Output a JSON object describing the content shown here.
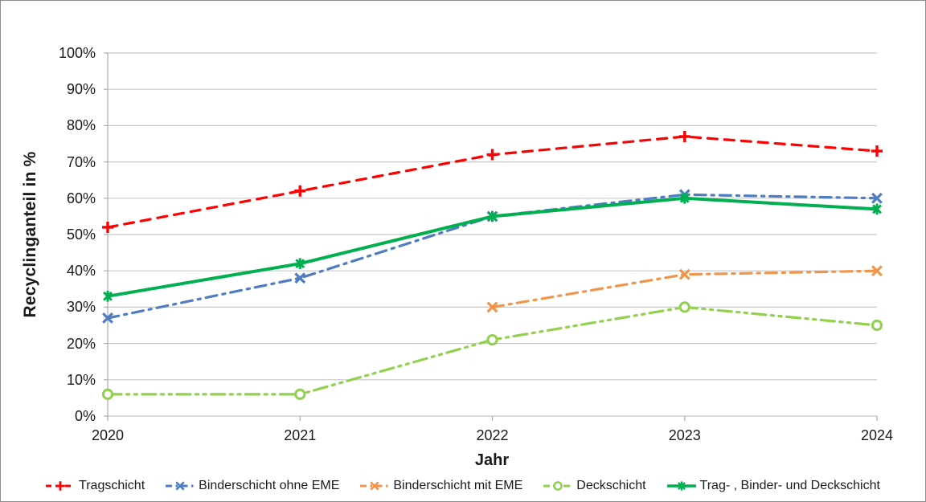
{
  "chart_data": {
    "type": "line",
    "title": "",
    "xlabel": "Jahr",
    "ylabel": "Recyclinganteil in %",
    "x_ticklabels": [
      "2020",
      "2021",
      "2022",
      "2023",
      "2024"
    ],
    "y_ticklabels": [
      "0%",
      "10%",
      "20%",
      "30%",
      "40%",
      "50%",
      "60%",
      "70%",
      "80%",
      "90%",
      "100%"
    ],
    "ylim": [
      0,
      100
    ],
    "y_step": 10,
    "grid": "horizontal",
    "legend_position": "bottom",
    "grid_color": "#c8c8c8",
    "axis_color": "#ababab",
    "text_color": "#1a1a1a",
    "series": [
      {
        "name": "Tragschicht",
        "color": "#ff0000",
        "dash": "dashed",
        "marker": "plus",
        "values": [
          52,
          62,
          72,
          77,
          73
        ]
      },
      {
        "name": "Binderschicht ohne EME",
        "color": "#4f7cc2",
        "dash": "dashdot",
        "marker": "x",
        "values": [
          27,
          38,
          55,
          61,
          60
        ]
      },
      {
        "name": "Binderschicht mit EME",
        "color": "#f0964c",
        "dash": "dashdot",
        "marker": "x",
        "values": [
          null,
          null,
          30,
          39,
          40
        ]
      },
      {
        "name": "Deckschicht",
        "color": "#92d050",
        "dash": "dashdotdot",
        "marker": "circle",
        "values": [
          6,
          6,
          21,
          30,
          25
        ]
      },
      {
        "name": "Trag- , Binder- und Deckschicht",
        "color": "#00b050",
        "dash": "solid",
        "marker": "asterisk",
        "values": [
          33,
          42,
          55,
          60,
          57
        ]
      }
    ]
  }
}
